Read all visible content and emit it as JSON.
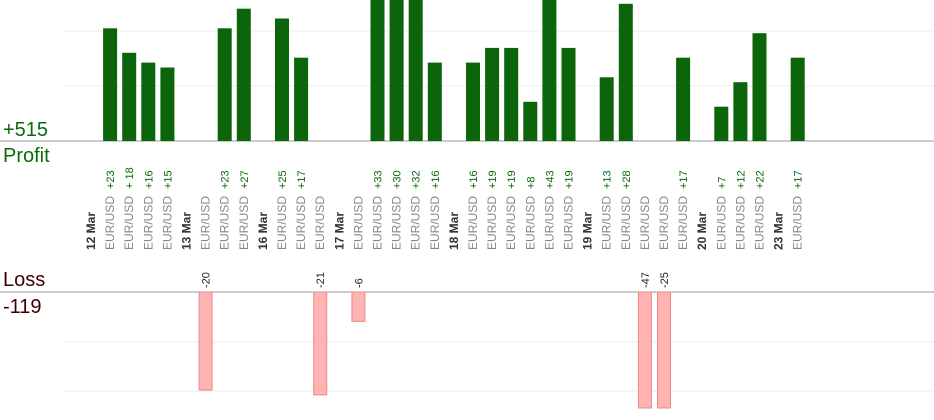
{
  "summary": {
    "profit_total": "+515",
    "profit_label": "Profit",
    "loss_label": "Loss",
    "loss_total": "-119"
  },
  "colors": {
    "profit_bar": "#0b650b",
    "loss_bar": "#ffb3b3",
    "loss_bar_border": "#e58b8b",
    "profit_text": "#0b6a0b",
    "loss_text": "#3d0000",
    "axis": "#999999",
    "grid": "#ebebeb"
  },
  "chart_data": {
    "type": "bar",
    "y_profit_range": [
      0,
      25
    ],
    "y_loss_range": [
      -25,
      0
    ],
    "grid": true,
    "columns": [
      {
        "date": "12 Mar"
      },
      {
        "symbol": "EUR/USD",
        "value": 23,
        "label": "+23"
      },
      {
        "symbol": "EUR/USD",
        "value": 18,
        "label": "+ 18"
      },
      {
        "symbol": "EUR/USD",
        "value": 16,
        "label": "+16"
      },
      {
        "symbol": "EUR/USD",
        "value": 15,
        "label": "+15"
      },
      {
        "date": "13 Mar"
      },
      {
        "symbol": "EUR/USD",
        "value": -20,
        "label": "-20"
      },
      {
        "symbol": "EUR/USD",
        "value": 23,
        "label": "+23"
      },
      {
        "symbol": "EUR/USD",
        "value": 27,
        "label": "+27"
      },
      {
        "date": "16 Mar"
      },
      {
        "symbol": "EUR/USD",
        "value": 25,
        "label": "+25"
      },
      {
        "symbol": "EUR/USD",
        "value": 17,
        "label": "+17"
      },
      {
        "symbol": "EUR/USD",
        "value": -21,
        "label": "-21"
      },
      {
        "date": "17 Mar"
      },
      {
        "symbol": "EUR/USD",
        "value": -6,
        "label": "-6"
      },
      {
        "symbol": "EUR/USD",
        "value": 33,
        "label": "+33"
      },
      {
        "symbol": "EUR/USD",
        "value": 30,
        "label": "+30"
      },
      {
        "symbol": "EUR/USD",
        "value": 32,
        "label": "+32"
      },
      {
        "symbol": "EUR/USD",
        "value": 16,
        "label": "+16"
      },
      {
        "date": "18 Mar"
      },
      {
        "symbol": "EUR/USD",
        "value": 16,
        "label": "+16"
      },
      {
        "symbol": "EUR/USD",
        "value": 19,
        "label": "+19"
      },
      {
        "symbol": "EUR/USD",
        "value": 19,
        "label": "+19"
      },
      {
        "symbol": "EUR/USD",
        "value": 8,
        "label": "+8"
      },
      {
        "symbol": "EUR/USD",
        "value": 43,
        "label": "+43"
      },
      {
        "symbol": "EUR/USD",
        "value": 19,
        "label": "+19"
      },
      {
        "date": "19 Mar"
      },
      {
        "symbol": "EUR/USD",
        "value": 13,
        "label": "+13"
      },
      {
        "symbol": "EUR/USD",
        "value": 28,
        "label": "+28"
      },
      {
        "symbol": "EUR/USD",
        "value": -47,
        "label": "-47"
      },
      {
        "symbol": "EUR/USD",
        "value": -25,
        "label": "-25"
      },
      {
        "symbol": "EUR/USD",
        "value": 17,
        "label": "+17"
      },
      {
        "date": "20 Mar"
      },
      {
        "symbol": "EUR/USD",
        "value": 7,
        "label": "+7"
      },
      {
        "symbol": "EUR/USD",
        "value": 12,
        "label": "+12"
      },
      {
        "symbol": "EUR/USD",
        "value": 22,
        "label": "+22"
      },
      {
        "date": "23 Mar"
      },
      {
        "symbol": "EUR/USD",
        "value": 17,
        "label": "+17"
      }
    ]
  }
}
